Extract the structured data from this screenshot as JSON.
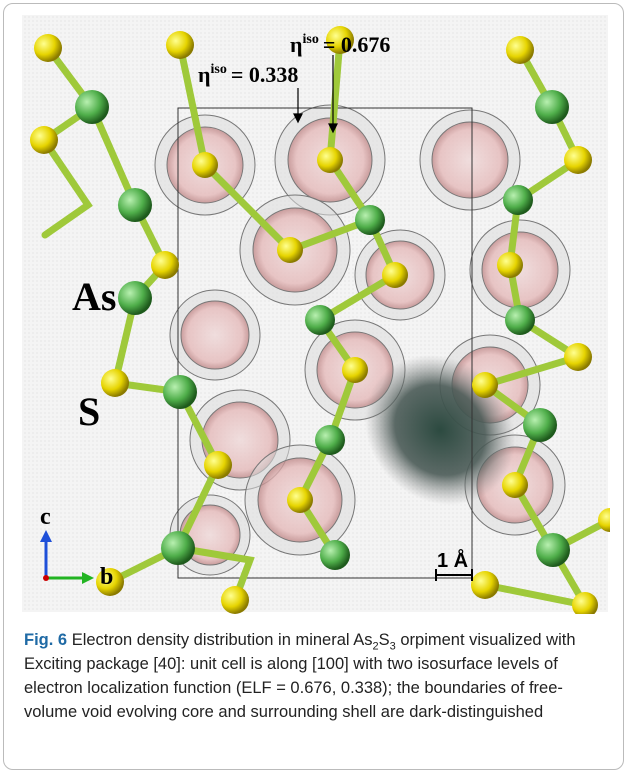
{
  "figure": {
    "labels": {
      "eta_high": {
        "symbol": "η",
        "sup": "iso",
        "value": "= 0.676"
      },
      "eta_low": {
        "symbol": "η",
        "sup": "iso",
        "value": "= 0.338"
      },
      "as": "As",
      "s": "S",
      "axis_c": "c",
      "axis_b": "b",
      "scale": "1 Å"
    },
    "caption": {
      "number": "Fig. 6",
      "text_1": "Electron density distribution in mineral As",
      "sub_1": "2",
      "text_2": "S",
      "sub_2": "3",
      "text_3": " orpiment visualized with Exciting package [40]: unit cell is along [100] with two isosurface levels of electron localization function (ELF = 0.676, 0.338); the boundaries of free-volume void evolving core and surrounding shell are dark-distinguished"
    }
  }
}
